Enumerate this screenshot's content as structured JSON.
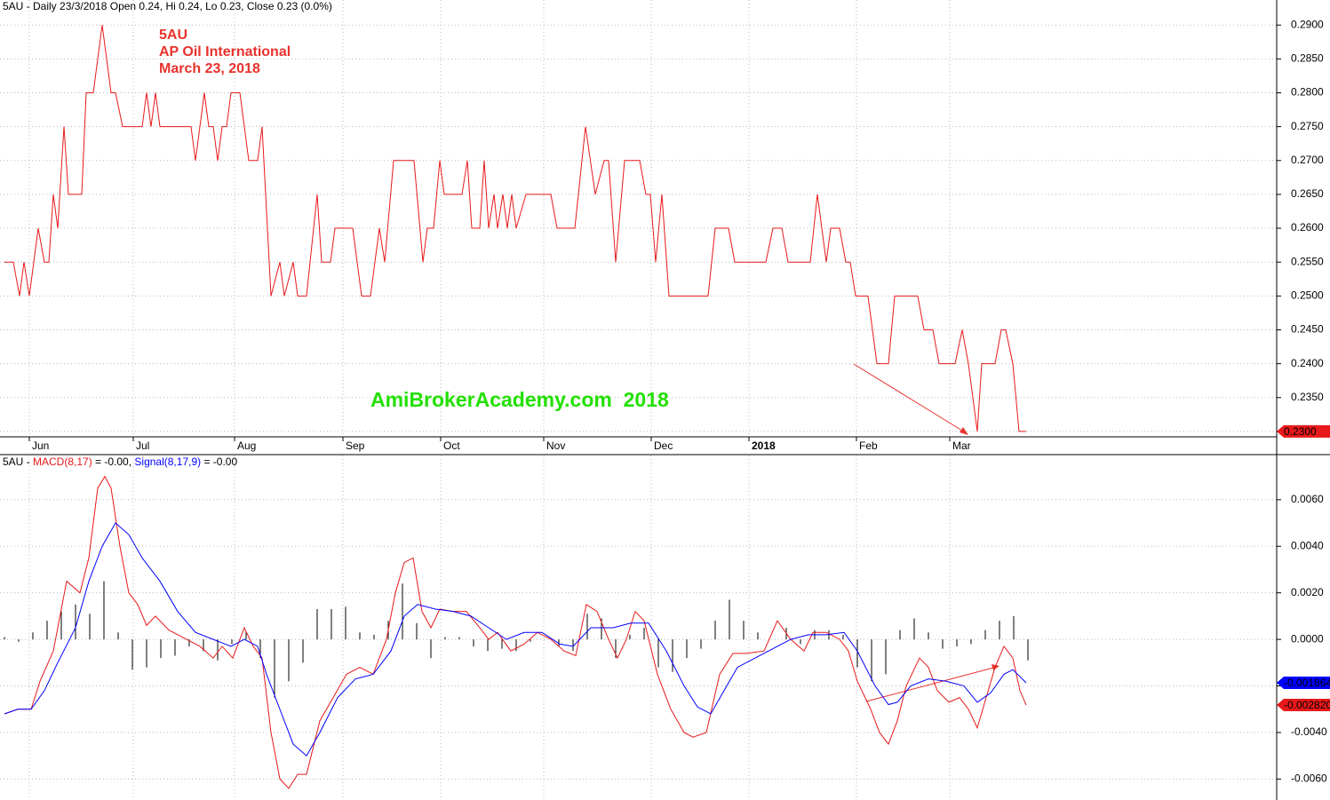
{
  "chart_data": [
    {
      "type": "line",
      "title": "5AU - Daily 23/3/2018 Open 0.24, Hi 0.24, Lo 0.23, Close 0.23 (0.0%)",
      "annotations": [
        "5AU",
        "AP Oil International",
        "March 23, 2018"
      ],
      "watermark": "AmiBrokerAcademy.com  2018",
      "color": "#e8191a",
      "x": [
        0,
        10,
        17,
        22,
        28,
        38,
        45,
        50,
        55,
        60,
        67,
        72,
        77,
        87,
        92,
        100,
        110,
        120,
        125,
        133,
        155,
        160,
        165,
        170,
        175,
        210,
        215,
        225,
        230,
        235,
        240,
        245,
        250,
        255,
        265,
        275,
        285,
        290,
        300,
        310,
        315,
        325,
        330,
        340,
        352,
        357,
        367,
        372,
        392,
        402,
        412,
        422,
        428,
        438,
        461,
        471,
        476,
        483,
        490,
        495,
        515,
        521,
        526,
        535,
        540,
        545,
        551,
        555,
        561,
        566,
        571,
        576,
        587,
        615,
        622,
        642,
        654,
        665,
        675,
        680,
        688,
        698,
        715,
        722,
        727,
        733,
        740,
        748,
        792,
        800,
        815,
        822,
        857,
        865,
        875,
        882,
        907,
        915,
        925,
        930,
        940,
        947,
        952,
        958,
        972,
        982,
        995,
        1002,
        1028,
        1035,
        1045,
        1052,
        1070,
        1078,
        1085,
        1095,
        1100,
        1115,
        1122,
        1127,
        1135,
        1142,
        1150
      ],
      "values": [
        0.255,
        0.255,
        0.25,
        0.255,
        0.25,
        0.26,
        0.255,
        0.255,
        0.265,
        0.26,
        0.275,
        0.265,
        0.265,
        0.265,
        0.28,
        0.28,
        0.29,
        0.28,
        0.28,
        0.275,
        0.275,
        0.28,
        0.275,
        0.28,
        0.275,
        0.275,
        0.27,
        0.28,
        0.275,
        0.275,
        0.27,
        0.275,
        0.275,
        0.28,
        0.28,
        0.27,
        0.27,
        0.275,
        0.25,
        0.255,
        0.25,
        0.255,
        0.25,
        0.25,
        0.265,
        0.255,
        0.255,
        0.26,
        0.26,
        0.25,
        0.25,
        0.26,
        0.255,
        0.27,
        0.27,
        0.255,
        0.26,
        0.26,
        0.27,
        0.265,
        0.265,
        0.27,
        0.26,
        0.26,
        0.27,
        0.26,
        0.265,
        0.26,
        0.265,
        0.26,
        0.265,
        0.26,
        0.265,
        0.265,
        0.26,
        0.26,
        0.275,
        0.265,
        0.27,
        0.27,
        0.255,
        0.27,
        0.27,
        0.265,
        0.265,
        0.255,
        0.265,
        0.25,
        0.25,
        0.26,
        0.26,
        0.255,
        0.255,
        0.26,
        0.26,
        0.255,
        0.255,
        0.265,
        0.255,
        0.26,
        0.26,
        0.255,
        0.255,
        0.25,
        0.25,
        0.24,
        0.24,
        0.25,
        0.25,
        0.245,
        0.245,
        0.24,
        0.24,
        0.245,
        0.24,
        0.23,
        0.24,
        0.24,
        0.245,
        0.245,
        0.24,
        0.23,
        0.23
      ],
      "end_label": "0.2300",
      "xlim": [
        0,
        1432
      ],
      "xticks": [
        {
          "value": 28,
          "label": "Jun"
        },
        {
          "value": 145,
          "label": "Jul"
        },
        {
          "value": 259,
          "label": "Aug"
        },
        {
          "value": 381,
          "label": "Sep"
        },
        {
          "value": 491,
          "label": "Oct"
        },
        {
          "value": 607,
          "label": "Nov"
        },
        {
          "value": 728,
          "label": "Dec"
        },
        {
          "value": 838,
          "label": "2018"
        },
        {
          "value": 959,
          "label": "Feb"
        },
        {
          "value": 1064,
          "label": "Mar"
        }
      ],
      "ylim": [
        0.2292,
        0.2937
      ],
      "yticks": [
        {
          "value": 0.23,
          "label": "0.2300"
        },
        {
          "value": 0.235,
          "label": "0.2350"
        },
        {
          "value": 0.24,
          "label": "0.2400"
        },
        {
          "value": 0.245,
          "label": "0.2450"
        },
        {
          "value": 0.25,
          "label": "0.2500"
        },
        {
          "value": 0.255,
          "label": "0.2550"
        },
        {
          "value": 0.26,
          "label": "0.2600"
        },
        {
          "value": 0.265,
          "label": "0.2650"
        },
        {
          "value": 0.27,
          "label": "0.2700"
        },
        {
          "value": 0.275,
          "label": "0.2750"
        },
        {
          "value": 0.28,
          "label": "0.2800"
        },
        {
          "value": 0.285,
          "label": "0.2850"
        },
        {
          "value": 0.29,
          "label": "0.2900"
        }
      ],
      "grid": true
    },
    {
      "type": "line",
      "title": "5AU - ",
      "xlim": [
        0,
        1432
      ],
      "ylim": [
        -0.0069,
        0.0079
      ],
      "yticks": [
        {
          "value": -0.006,
          "label": "-0.0060"
        },
        {
          "value": -0.004,
          "label": "-0.0040"
        },
        {
          "value": -0.002,
          "label": "-0.0020"
        },
        {
          "value": 0,
          "label": "0.0000"
        },
        {
          "value": 0.002,
          "label": "0.0020"
        },
        {
          "value": 0.004,
          "label": "0.0040"
        },
        {
          "value": 0.006,
          "label": "0.0060"
        }
      ],
      "grid": true,
      "series": [
        {
          "type": "bar",
          "color": "#000000",
          "x": [
            0,
            16,
            32,
            48,
            64,
            80,
            96,
            112,
            128,
            144,
            160,
            176,
            192,
            208,
            224,
            240,
            256,
            272,
            288,
            304,
            320,
            336,
            352,
            368,
            384,
            400,
            416,
            432,
            448,
            464,
            480,
            496,
            512,
            528,
            544,
            560,
            576,
            592,
            608,
            624,
            640,
            656,
            672,
            688,
            704,
            720,
            736,
            752,
            768,
            784,
            800,
            816,
            832,
            848,
            864,
            880,
            896,
            912,
            928,
            944,
            960,
            976,
            992,
            1008,
            1024,
            1040,
            1056,
            1072,
            1088,
            1104,
            1120,
            1136,
            1152
          ],
          "values": [
            0.0001,
            -0.0001,
            0.0003,
            0.0008,
            0.0012,
            0.0015,
            0.0011,
            0.0025,
            0.0003,
            -0.0013,
            -0.0012,
            -0.0008,
            -0.0007,
            -0.0003,
            -0.0005,
            -0.0009,
            -0.0002,
            0.0003,
            -0.0008,
            -0.0025,
            -0.0018,
            -0.001,
            0.0013,
            0.0013,
            0.0014,
            0.0003,
            0.0002,
            0.0008,
            0.0024,
            0.0007,
            -0.0008,
            0.0001,
            0.0001,
            -0.0003,
            -0.0005,
            -0.0004,
            -0.0005,
            -0.0001,
            0,
            -0.0003,
            -0.0005,
            0.0011,
            0.0009,
            -0.0008,
            0.0002,
            0.0005,
            -0.0012,
            -0.0014,
            -0.0008,
            -0.0004,
            0.0008,
            0.0017,
            0.0008,
            0.0003,
            0,
            0.0005,
            -0.0002,
            0.0004,
            0.0004,
            0.0002,
            -0.0012,
            -0.0018,
            -0.0015,
            0.0004,
            0.0009,
            0.0003,
            -0.0004,
            -0.0003,
            -0.0002,
            0.0004,
            0.0008,
            0.001,
            -0.0009
          ]
        },
        {
          "type": "line",
          "name": "MACD(8,17)",
          "header_value": " = -0.00, ",
          "color": "#e8191a",
          "end_label": "-0.002820",
          "x": [
            0,
            15,
            30,
            40,
            55,
            70,
            85,
            95,
            105,
            113,
            120,
            130,
            140,
            150,
            160,
            170,
            185,
            205,
            220,
            235,
            245,
            257,
            270,
            280,
            290,
            300,
            310,
            320,
            330,
            340,
            355,
            370,
            385,
            400,
            415,
            430,
            440,
            450,
            460,
            470,
            480,
            490,
            505,
            520,
            535,
            545,
            555,
            570,
            585,
            600,
            615,
            630,
            643,
            655,
            667,
            680,
            690,
            700,
            710,
            720,
            735,
            750,
            765,
            775,
            790,
            805,
            820,
            835,
            855,
            870,
            885,
            900,
            910,
            925,
            940,
            950,
            960,
            975,
            985,
            995,
            1005,
            1015,
            1030,
            1040,
            1050,
            1063,
            1075,
            1085,
            1095,
            1105,
            1115,
            1125,
            1135,
            1143,
            1150
          ],
          "values": [
            -0.0032,
            -0.003,
            -0.003,
            -0.0018,
            -0.0005,
            0.0025,
            0.002,
            0.0035,
            0.0065,
            0.007,
            0.0065,
            0.004,
            0.002,
            0.0015,
            0.0006,
            0.001,
            0.0004,
            0,
            -0.0003,
            -0.0008,
            -0.0003,
            -0.0008,
            0.0005,
            -0.0003,
            -0.0008,
            -0.004,
            -0.006,
            -0.0064,
            -0.0058,
            -0.0058,
            -0.0035,
            -0.0025,
            -0.0015,
            -0.0012,
            -0.0015,
            0,
            0.002,
            0.0033,
            0.0035,
            0.0012,
            0.0005,
            0.0013,
            0.0012,
            0.0012,
            0.0005,
            0,
            0.0003,
            -0.0005,
            -0.0002,
            0.0003,
            0,
            -0.0005,
            -0.0007,
            0.0015,
            0.0012,
            0,
            -0.0008,
            0,
            0.0012,
            0.0008,
            -0.0015,
            -0.003,
            -0.004,
            -0.0042,
            -0.004,
            -0.0015,
            -0.0006,
            -0.0006,
            -0.0005,
            0.0008,
            0,
            -0.0005,
            0.0003,
            0.0003,
            0,
            -0.0005,
            -0.0018,
            -0.003,
            -0.004,
            -0.0045,
            -0.0035,
            -0.002,
            -0.0008,
            -0.0012,
            -0.0022,
            -0.0027,
            -0.0025,
            -0.003,
            -0.0038,
            -0.0025,
            -0.0012,
            -0.0003,
            -0.0008,
            -0.0022,
            -0.00282
          ]
        },
        {
          "type": "line",
          "name": "Signal(8,17,9)",
          "header_value": " = -0.00",
          "color": "#0000ff",
          "end_label": "-0.001864",
          "x": [
            0,
            15,
            30,
            45,
            60,
            80,
            95,
            110,
            125,
            140,
            155,
            175,
            195,
            215,
            235,
            255,
            270,
            285,
            295,
            310,
            325,
            340,
            355,
            375,
            395,
            415,
            435,
            450,
            465,
            485,
            505,
            525,
            545,
            565,
            585,
            605,
            625,
            640,
            660,
            685,
            705,
            725,
            745,
            765,
            780,
            795,
            810,
            825,
            845,
            865,
            885,
            905,
            925,
            945,
            960,
            980,
            995,
            1005,
            1020,
            1040,
            1060,
            1080,
            1095,
            1110,
            1125,
            1135,
            1143,
            1150
          ],
          "values": [
            -0.0032,
            -0.003,
            -0.003,
            -0.0022,
            -0.001,
            0.0005,
            0.0025,
            0.004,
            0.005,
            0.0045,
            0.0035,
            0.0025,
            0.0012,
            0.0003,
            0,
            -0.0003,
            0,
            -0.0003,
            -0.0015,
            -0.003,
            -0.0045,
            -0.005,
            -0.004,
            -0.0025,
            -0.0017,
            -0.0015,
            -0.0005,
            0.001,
            0.0015,
            0.0013,
            0.0012,
            0.001,
            0.0005,
            0,
            0.0003,
            0.0003,
            -0.0002,
            -0.0003,
            0.0005,
            0.0005,
            0.0007,
            0.0007,
            -0.0005,
            -0.002,
            -0.0029,
            -0.0032,
            -0.0022,
            -0.0012,
            -0.0008,
            -0.0004,
            0,
            0.0002,
            0.0002,
            0.0003,
            -0.0005,
            -0.002,
            -0.0028,
            -0.0027,
            -0.002,
            -0.0017,
            -0.0018,
            -0.002,
            -0.0027,
            -0.0023,
            -0.0015,
            -0.0013,
            -0.0016,
            -0.001864
          ]
        }
      ]
    }
  ]
}
